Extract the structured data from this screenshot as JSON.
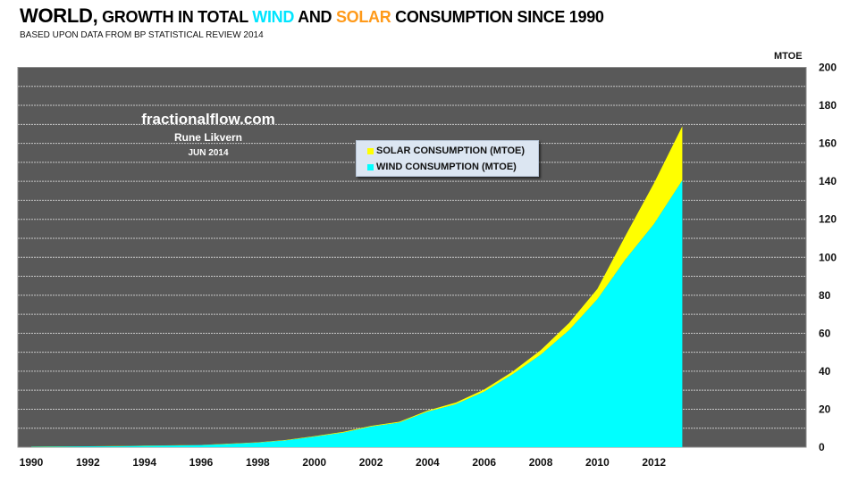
{
  "header": {
    "title_part1": "WORLD,",
    "title_part2": " GROWTH IN TOTAL ",
    "title_wind": "WIND",
    "title_part3": " AND ",
    "title_solar": "SOLAR",
    "title_part4": " CONSUMPTION SINCE 1990",
    "subtitle": "BASED UPON DATA FROM BP STATISTICAL REVIEW 2014"
  },
  "annotation": {
    "site": "fractionalflow.com",
    "author": "Rune Likvern",
    "date": "JUN 2014"
  },
  "colors": {
    "wind": "#00ffff",
    "solar": "#ffff00",
    "plot_background": "#595959",
    "title_wind": "#00e5ff",
    "title_solar": "#ff9a1a",
    "legend_background": "#dce6f2"
  },
  "chart_data": {
    "type": "area",
    "stacked": true,
    "title": "WORLD, GROWTH IN TOTAL WIND AND SOLAR CONSUMPTION SINCE 1990",
    "subtitle": "BASED UPON DATA FROM BP STATISTICAL REVIEW 2014",
    "xlabel": "",
    "ylabel": "MTOE",
    "y_axis_side": "right",
    "ylim": [
      0,
      200
    ],
    "y_ticks": [
      0,
      20,
      40,
      60,
      80,
      100,
      120,
      140,
      160,
      180,
      200
    ],
    "y_tick_labels": [
      "0",
      "20",
      "40",
      "60",
      "80",
      "100",
      "120",
      "140",
      "160",
      "180",
      "200"
    ],
    "gridlines_every": 10,
    "grid": true,
    "xlim": [
      1990,
      2017
    ],
    "x_tick_labels": [
      "1990",
      "1992",
      "1994",
      "1996",
      "1998",
      "2000",
      "2002",
      "2004",
      "2006",
      "2008",
      "2010",
      "2012"
    ],
    "x": [
      1990,
      1991,
      1992,
      1993,
      1994,
      1995,
      1996,
      1997,
      1998,
      1999,
      2000,
      2001,
      2002,
      2003,
      2004,
      2005,
      2006,
      2007,
      2008,
      2009,
      2010,
      2011,
      2012,
      2013
    ],
    "series": [
      {
        "name": "WIND CONSUMPTION (MTOE)",
        "color": "#00ffff",
        "values": [
          0.2,
          0.3,
          0.4,
          0.5,
          0.7,
          0.9,
          1.1,
          1.7,
          2.4,
          3.6,
          5.5,
          7.6,
          10.8,
          12.9,
          18.7,
          22.6,
          29.2,
          38.3,
          48.7,
          61.6,
          77.9,
          99.0,
          117.5,
          140.5
        ]
      },
      {
        "name": "SOLAR CONSUMPTION (MTOE)",
        "color": "#ffff00",
        "values": [
          0.1,
          0.1,
          0.1,
          0.1,
          0.1,
          0.1,
          0.1,
          0.2,
          0.2,
          0.2,
          0.3,
          0.4,
          0.4,
          0.5,
          0.6,
          0.9,
          1.2,
          1.5,
          2.4,
          3.8,
          5.5,
          12.6,
          21.5,
          28.5
        ]
      }
    ],
    "legend": {
      "placement": "top-center",
      "entries": [
        "SOLAR CONSUMPTION (MTOE)",
        "WIND CONSUMPTION (MTOE)"
      ]
    }
  }
}
